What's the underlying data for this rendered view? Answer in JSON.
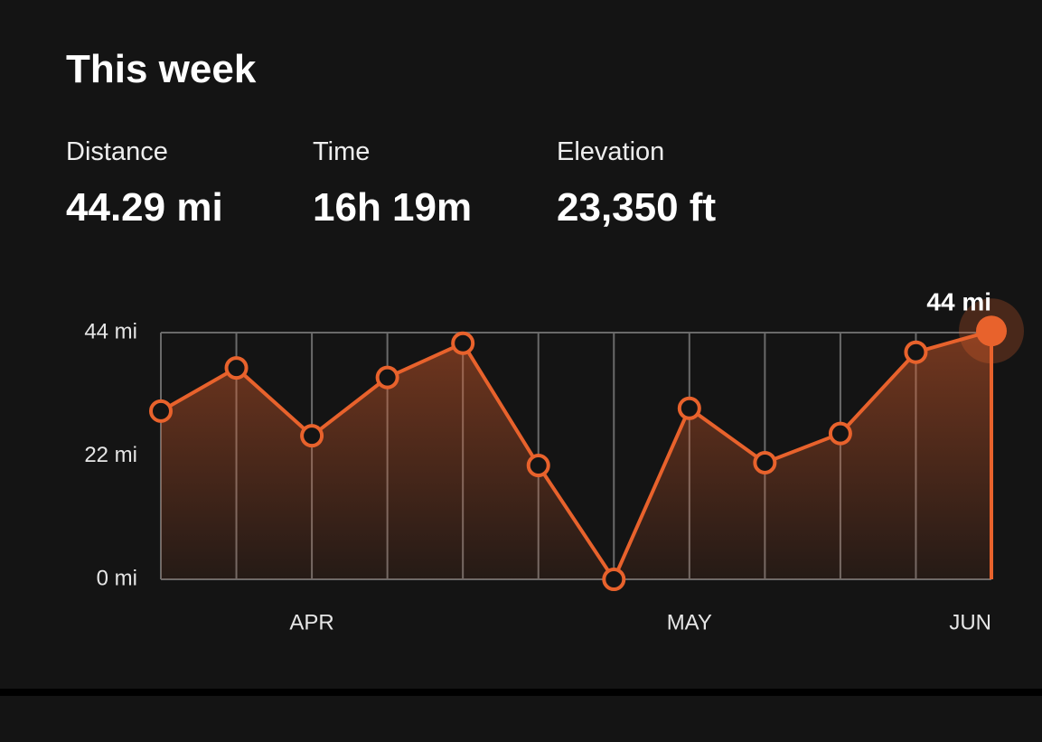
{
  "header": {
    "title": "This week"
  },
  "stats": [
    {
      "label": "Distance",
      "value": "44.29 mi"
    },
    {
      "label": "Time",
      "value": "16h 19m"
    },
    {
      "label": "Elevation",
      "value": "23,350 ft"
    }
  ],
  "chart_data": {
    "type": "line",
    "categories": [
      null,
      null,
      "APR",
      null,
      null,
      null,
      null,
      "MAY",
      null,
      null,
      null,
      "JUN"
    ],
    "values": [
      30.0,
      37.7,
      25.6,
      36.0,
      42.1,
      20.3,
      0,
      30.5,
      20.8,
      26.0,
      40.5,
      44.29
    ],
    "value_labels": [
      null,
      null,
      null,
      null,
      null,
      null,
      null,
      null,
      null,
      null,
      null,
      "44 mi"
    ],
    "color": "#e8622c",
    "ylim": [
      0,
      44
    ],
    "yticks": [
      {
        "value": 0,
        "label": "0 mi"
      },
      {
        "value": 22,
        "label": "22 mi"
      },
      {
        "value": 44,
        "label": "44 mi"
      }
    ],
    "grid": true
  }
}
